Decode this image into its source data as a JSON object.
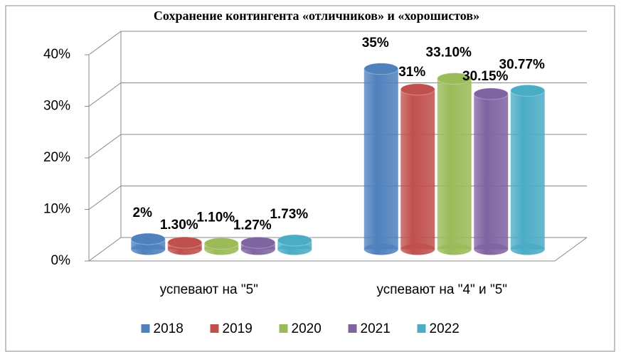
{
  "chart_data": {
    "type": "bar3d",
    "title": "Сохранение контингента «отличников» и «хорошистов»",
    "categories": [
      "успевают на \"5\"",
      "успевают на \"4\" и \"5\""
    ],
    "series": [
      {
        "name": "2018",
        "color": "#4f81bd",
        "values": [
          2,
          35
        ],
        "value_labels": [
          "2%",
          "35%"
        ]
      },
      {
        "name": "2019",
        "color": "#c0504d",
        "values": [
          1.3,
          31
        ],
        "value_labels": [
          "1.30%",
          "31%"
        ]
      },
      {
        "name": "2020",
        "color": "#9bbb59",
        "values": [
          1.1,
          33.1
        ],
        "value_labels": [
          "1.10%",
          "33.10%"
        ]
      },
      {
        "name": "2021",
        "color": "#8064a2",
        "values": [
          1.27,
          30.15
        ],
        "value_labels": [
          "1.27%",
          "30.15%"
        ]
      },
      {
        "name": "2022",
        "color": "#4bacc6",
        "values": [
          1.73,
          30.77
        ],
        "value_labels": [
          "1.73%",
          "30.77%"
        ]
      }
    ],
    "ylim": [
      0,
      40
    ],
    "yticks": [
      {
        "value": 0,
        "label": "0%"
      },
      {
        "value": 10,
        "label": "10%"
      },
      {
        "value": 20,
        "label": "20%"
      },
      {
        "value": 30,
        "label": "30%"
      },
      {
        "value": 40,
        "label": "40%"
      }
    ],
    "grid": true,
    "legend": "bottom"
  }
}
